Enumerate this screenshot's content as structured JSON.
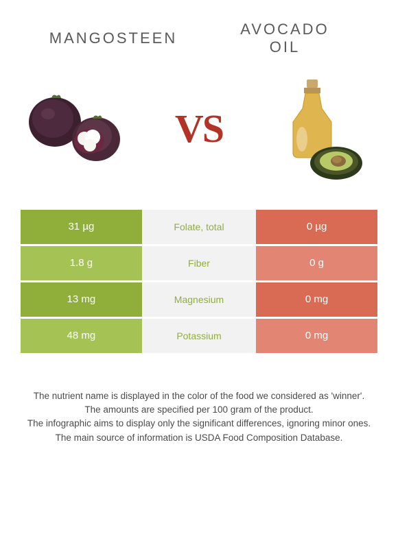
{
  "food_left": {
    "title": "MANGOSTEEN"
  },
  "food_right": {
    "title_line1": "AVOCADO",
    "title_line2": "OIL"
  },
  "vs_label": "VS",
  "colors": {
    "left_strong": "#8fae3a",
    "left_light": "#a5c254",
    "mid": "#f2f2f2",
    "right_strong": "#d96b55",
    "right_light": "#e28572",
    "winner_text_left": "#8fae3a",
    "neutral_text": "#888888"
  },
  "nutrients": [
    {
      "name": "Folate, total",
      "left": "31 µg",
      "right": "0 µg",
      "winner": "left"
    },
    {
      "name": "Fiber",
      "left": "1.8 g",
      "right": "0 g",
      "winner": "left"
    },
    {
      "name": "Magnesium",
      "left": "13 mg",
      "right": "0 mg",
      "winner": "left"
    },
    {
      "name": "Potassium",
      "left": "48 mg",
      "right": "0 mg",
      "winner": "left"
    }
  ],
  "footer": [
    "The nutrient name is displayed in the color of the food we considered as 'winner'.",
    "The amounts are specified per 100 gram of the product.",
    "The infographic aims to display only the significant differences, ignoring minor ones.",
    "The main source of information is USDA Food Composition Database."
  ]
}
